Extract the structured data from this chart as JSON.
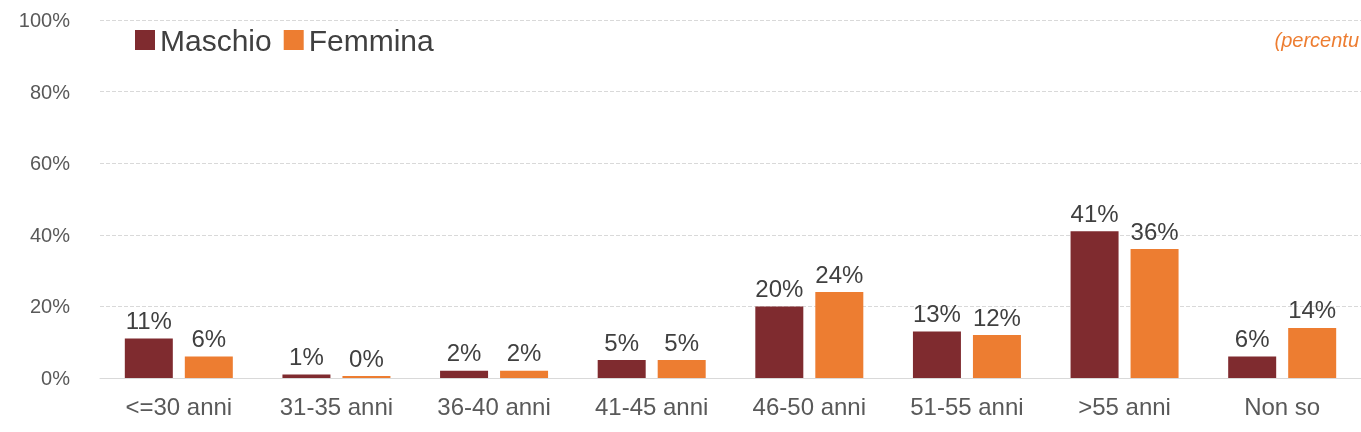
{
  "chart_data": {
    "type": "bar",
    "categories": [
      "<=30 anni",
      "31-35 anni",
      "36-40 anni",
      "41-45 anni",
      "46-50 anni",
      "51-55 anni",
      ">55 anni",
      "Non so"
    ],
    "series": [
      {
        "name": "Maschio",
        "color": "#7f2b2f",
        "values": [
          11,
          1,
          2,
          5,
          20,
          13,
          41,
          6
        ],
        "value_labels": [
          "11%",
          "1%",
          "2%",
          "5%",
          "20%",
          "13%",
          "41%",
          "6%"
        ]
      },
      {
        "name": "Femmina",
        "color": "#ed7d31",
        "values": [
          6,
          0,
          2,
          5,
          24,
          12,
          36,
          14
        ],
        "value_labels": [
          "6%",
          "0%",
          "2%",
          "5%",
          "24%",
          "12%",
          "36%",
          "14%"
        ]
      }
    ],
    "ylim": [
      0,
      100
    ],
    "yticks": [
      {
        "value": 0,
        "label": "0%"
      },
      {
        "value": 20,
        "label": "20%"
      },
      {
        "value": 40,
        "label": "40%"
      },
      {
        "value": 60,
        "label": "60%"
      },
      {
        "value": 80,
        "label": "80%"
      },
      {
        "value": 100,
        "label": "100%"
      }
    ],
    "grid": "y",
    "legend": "top left",
    "annotations": [
      "(percentu"
    ]
  }
}
